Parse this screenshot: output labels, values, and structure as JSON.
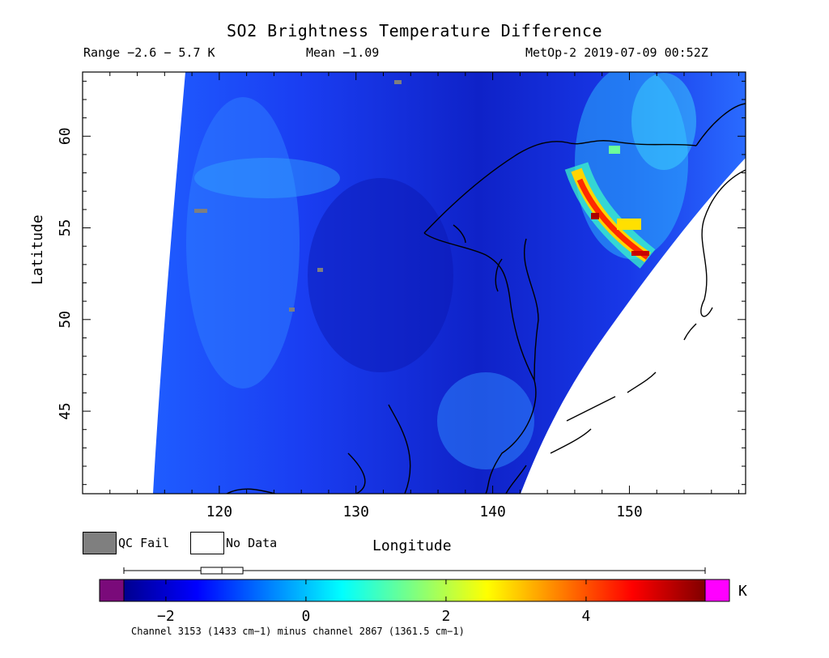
{
  "header": {
    "title": "SO2 Brightness Temperature Difference",
    "range_text": "Range −2.6 − 5.7 K",
    "mean_text": "Mean −1.09",
    "satellite_time": "MetOp-2 2019-07-09 00:52Z"
  },
  "axes": {
    "xlabel": "Longitude",
    "ylabel": "Latitude",
    "x_ticks": [
      "120",
      "130",
      "140",
      "150"
    ],
    "y_ticks": [
      "45",
      "50",
      "55",
      "60"
    ],
    "x_tick_values": [
      120,
      130,
      140,
      150
    ],
    "y_tick_values": [
      45,
      50,
      55,
      60
    ],
    "xlim": [
      110,
      158.5
    ],
    "ylim": [
      40.5,
      63.5
    ]
  },
  "legend": {
    "qc_fail_label": "QC Fail",
    "no_data_label": "No Data",
    "qc_fail_color": "#7f7f7f",
    "no_data_color": "#ffffff"
  },
  "colorbar": {
    "tick_labels": [
      "−2",
      "0",
      "2",
      "4"
    ],
    "tick_values": [
      -2,
      0,
      2,
      4
    ],
    "range": [
      -2.6,
      5.7
    ],
    "unit": "K",
    "under_color": "#7a0a7a",
    "over_color": "#ff00ff",
    "box_plot": {
      "whisker_low": -2.6,
      "q1": -1.5,
      "median": -1.2,
      "q3": -0.9,
      "whisker_high": 5.7
    }
  },
  "footnote": "Channel 3153 (1433 cm−1) minus channel 2867 (1361.5 cm−1)"
}
